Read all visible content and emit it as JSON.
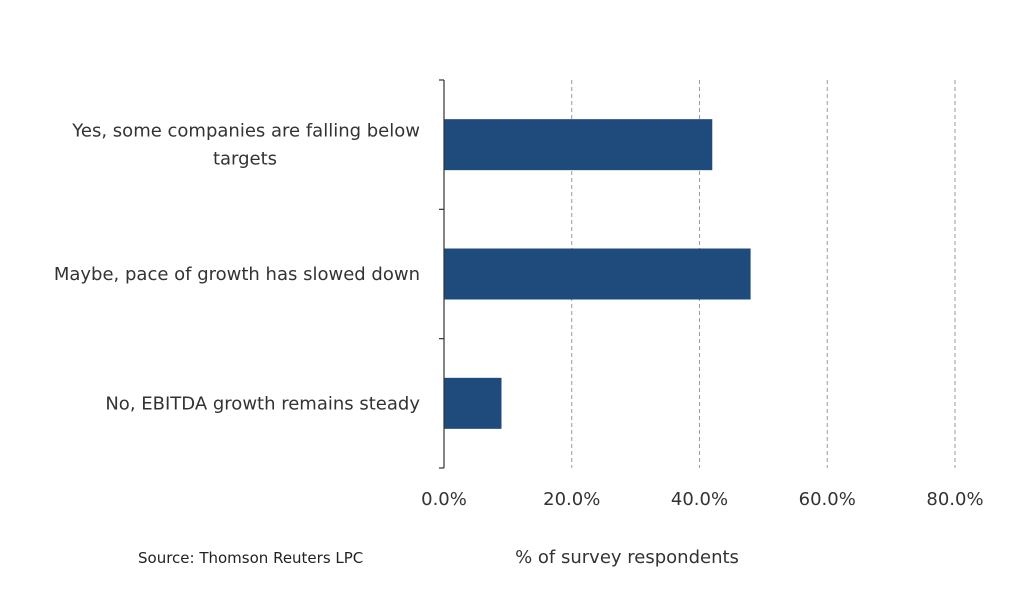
{
  "chart_data": {
    "type": "bar",
    "orientation": "horizontal",
    "categories": [
      "Yes, some companies are falling below targets",
      "Maybe, pace of growth has slowed down",
      "No, EBITDA growth remains steady"
    ],
    "category_label_lines": [
      [
        "Yes, some companies are falling below",
        "targets"
      ],
      [
        "Maybe, pace of growth has slowed down"
      ],
      [
        "No, EBITDA growth remains steady"
      ]
    ],
    "values": [
      42,
      48,
      9
    ],
    "xlabel": "% of survey respondents",
    "ylabel": "",
    "xlim": [
      0,
      80
    ],
    "ticks": [
      0,
      20,
      40,
      60,
      80
    ],
    "tick_labels": [
      "0.0%",
      "20.0%",
      "40.0%",
      "60.0%",
      "80.0%"
    ],
    "grid": "vertical dashed",
    "bar_color": "#1f4a7c",
    "grid_color": "#9a9a9a",
    "axis_color": "#333333"
  },
  "footer": {
    "source": "Source: Thomson Reuters LPC"
  }
}
